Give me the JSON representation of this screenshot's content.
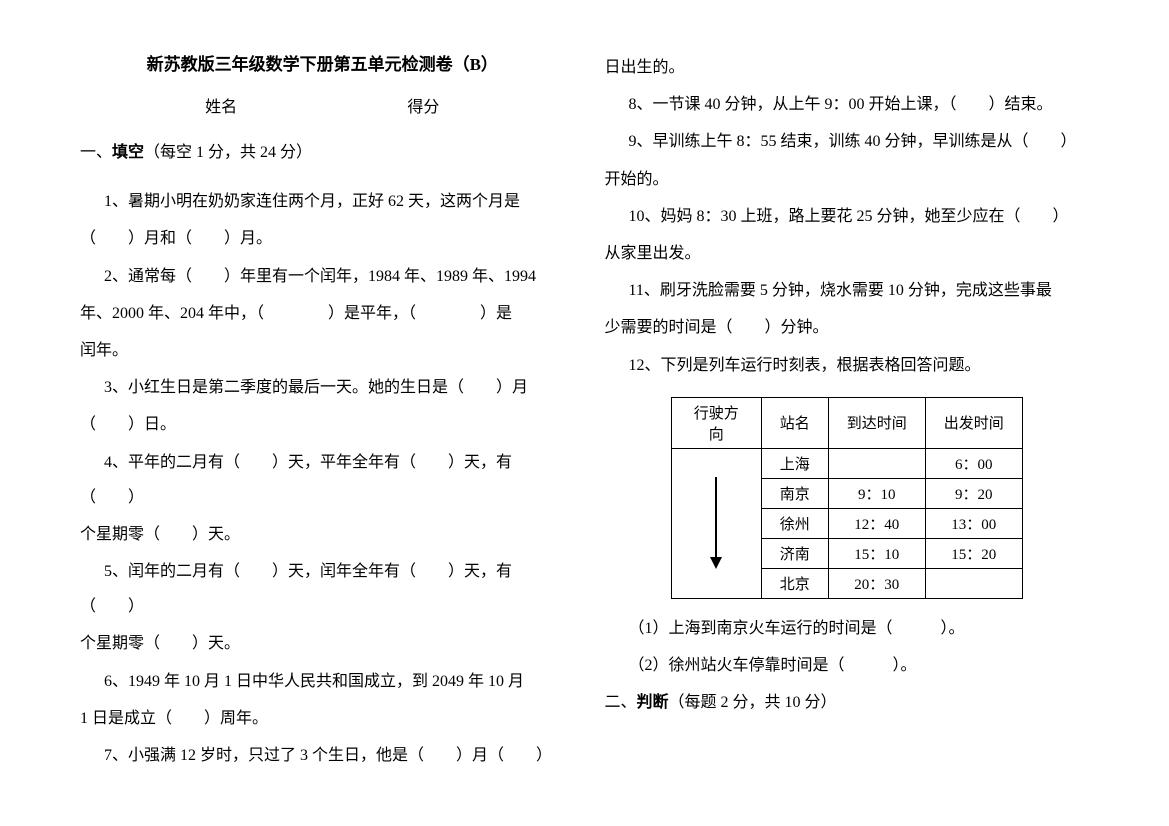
{
  "title": "新苏教版三年级数学下册第五单元检测卷（B）",
  "labels": {
    "name": "姓名",
    "score": "得分"
  },
  "section1": {
    "header_prefix": "一、",
    "header_bold": "填空",
    "header_suffix": "（每空 1 分，共 24 分）",
    "q1": "1、暑期小明在奶奶家连住两个月，正好 62 天，这两个月是",
    "q1_cont": "（　　）月和（　　）月。",
    "q2": "2、通常每（　　）年里有一个闰年，1984 年、1989 年、1994",
    "q2_cont": "年、2000 年、204 年中，（　　　　）是平年，（　　　　）是",
    "q2_cont2": "闰年。",
    "q3": "3、小红生日是第二季度的最后一天。她的生日是（　　）月",
    "q3_cont": "（　　）日。",
    "q4": "4、平年的二月有（　　）天，平年全年有（　　）天，有（　　）",
    "q4_cont": "个星期零（　　）天。",
    "q5": "5、闰年的二月有（　　）天，闰年全年有（　　）天，有（　　）",
    "q5_cont": "个星期零（　　）天。",
    "q6": "6、1949 年 10 月 1 日中华人民共和国成立，到 2049 年 10 月",
    "q6_cont": "1 日是成立（　　）周年。",
    "q7": "7、小强满 12 岁时，只过了 3 个生日，他是（　　）月（　　）",
    "q7_cont": "日出生的。",
    "q8": "8、一节课 40 分钟，从上午 9：00 开始上课，（　　）结束。",
    "q9": "9、早训练上午 8：55 结束，训练 40 分钟，早训练是从（　　）",
    "q9_cont": "开始的。",
    "q10": "10、妈妈 8：30 上班，路上要花 25 分钟，她至少应在（　　）",
    "q10_cont": "从家里出发。",
    "q11": "11、刷牙洗脸需要 5 分钟，烧水需要 10 分钟，完成这些事最",
    "q11_cont": "少需要的时间是（　　）分钟。",
    "q12": "12、下列是列车运行时刻表，根据表格回答问题。",
    "q12_sub1": "（1）上海到南京火车运行的时间是（　　　）。",
    "q12_sub2": "（2）徐州站火车停靠时间是（　　　）。"
  },
  "table": {
    "headers": [
      "行驶方向",
      "站名",
      "到达时间",
      "出发时间"
    ],
    "rows": [
      {
        "station": "上海",
        "arrive": "",
        "depart": "6：00"
      },
      {
        "station": "南京",
        "arrive": "9：10",
        "depart": "9：20"
      },
      {
        "station": "徐州",
        "arrive": "12：40",
        "depart": "13：00"
      },
      {
        "station": "济南",
        "arrive": "15：10",
        "depart": "15：20"
      },
      {
        "station": "北京",
        "arrive": "20：30",
        "depart": ""
      }
    ]
  },
  "section2": {
    "header_prefix": "二、",
    "header_bold": "判断",
    "header_suffix": "（每题 2 分，共 10 分）"
  }
}
